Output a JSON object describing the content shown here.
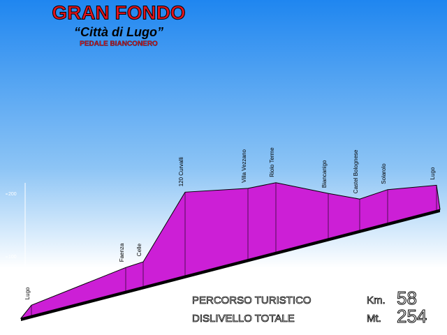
{
  "chart_data": {
    "type": "area",
    "title": "GRAN FONDO",
    "subtitle": "“Città di Lugo”",
    "caption": "PEDALE BIANCONERO",
    "categories": [
      "Lugo",
      "Faenza",
      "Celle",
      "120 Curvalli",
      "Villa Vezzano",
      "Riolo Terme",
      "Biancanigo",
      "Castel Bolognese",
      "Solarolo",
      "Lugo"
    ],
    "values": [
      23,
      83,
      92,
      203,
      209,
      218,
      201,
      192,
      207,
      214
    ],
    "color": "#cc1fd6",
    "ylim": [
      0,
      250
    ],
    "yticks": [
      100,
      200
    ],
    "stats": [
      {
        "label": "PERCORSO TURISTICO",
        "unit": "Km.",
        "value": 58
      },
      {
        "label": "DISLIVELLO TOTALE",
        "unit": "Mt.",
        "value": 254
      }
    ]
  }
}
